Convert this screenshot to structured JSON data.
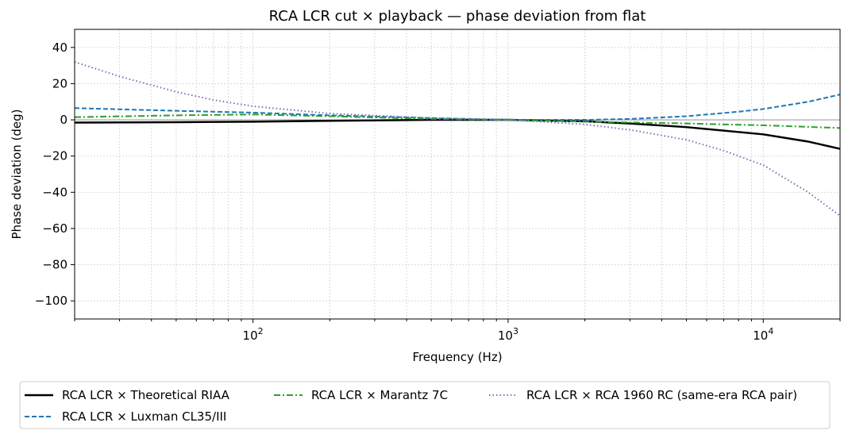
{
  "chart_data": {
    "type": "line",
    "title": "RCA LCR cut × playback — phase deviation from flat",
    "xlabel": "Frequency (Hz)",
    "ylabel": "Phase deviation (deg)",
    "xscale": "log",
    "xlim": [
      20,
      20000
    ],
    "ylim": [
      -110,
      50
    ],
    "yticks": [
      40,
      20,
      0,
      -20,
      -40,
      -60,
      -80,
      -100
    ],
    "ytick_labels": [
      "40",
      "20",
      "0",
      "−20",
      "−40",
      "−60",
      "−80",
      "−100"
    ],
    "xticks": [
      {
        "value": 100,
        "base": "10",
        "exp": "2"
      },
      {
        "value": 1000,
        "base": "10",
        "exp": "3"
      },
      {
        "value": 10000,
        "base": "10",
        "exp": "4"
      }
    ],
    "grid": true,
    "legend_position": "bottom",
    "series": [
      {
        "name": "RCA LCR × Theoretical RIAA",
        "color": "#000000",
        "style": "solid",
        "x": [
          20,
          50,
          100,
          200,
          500,
          1000,
          2000,
          3000,
          5000,
          10000,
          15000,
          20000
        ],
        "y": [
          -1.5,
          -1.3,
          -1.0,
          -0.5,
          0,
          0,
          -0.8,
          -2.0,
          -4.0,
          -8.0,
          -12.0,
          -16.0
        ]
      },
      {
        "name": "RCA LCR × Luxman CL35/III",
        "color": "#1f77b4",
        "style": "dashed",
        "x": [
          20,
          50,
          100,
          200,
          500,
          1000,
          2000,
          3000,
          5000,
          8000,
          10000,
          15000,
          20000
        ],
        "y": [
          6.5,
          5.0,
          4.0,
          2.5,
          1.0,
          0,
          0,
          0.5,
          2.0,
          4.5,
          6.0,
          10.0,
          14.0
        ]
      },
      {
        "name": "RCA LCR × Marantz 7C",
        "color": "#2ca02c",
        "style": "dashdot",
        "x": [
          20,
          50,
          100,
          200,
          500,
          1000,
          2000,
          5000,
          10000,
          20000
        ],
        "y": [
          1.5,
          2.5,
          3.0,
          2.0,
          0.5,
          0,
          -1.0,
          -2.0,
          -3.0,
          -4.5
        ]
      },
      {
        "name": "RCA LCR × RCA 1960 RC (same-era RCA pair)",
        "color": "#7f6db5",
        "style": "dotted",
        "x": [
          20,
          30,
          50,
          70,
          100,
          200,
          500,
          1000,
          2000,
          3000,
          5000,
          7000,
          10000,
          15000,
          20000
        ],
        "y": [
          32.0,
          24.0,
          15.5,
          11.0,
          7.5,
          3.5,
          1.0,
          0,
          -2.5,
          -5.5,
          -11.0,
          -17.0,
          -25.0,
          -40.0,
          -53.0
        ]
      }
    ]
  }
}
